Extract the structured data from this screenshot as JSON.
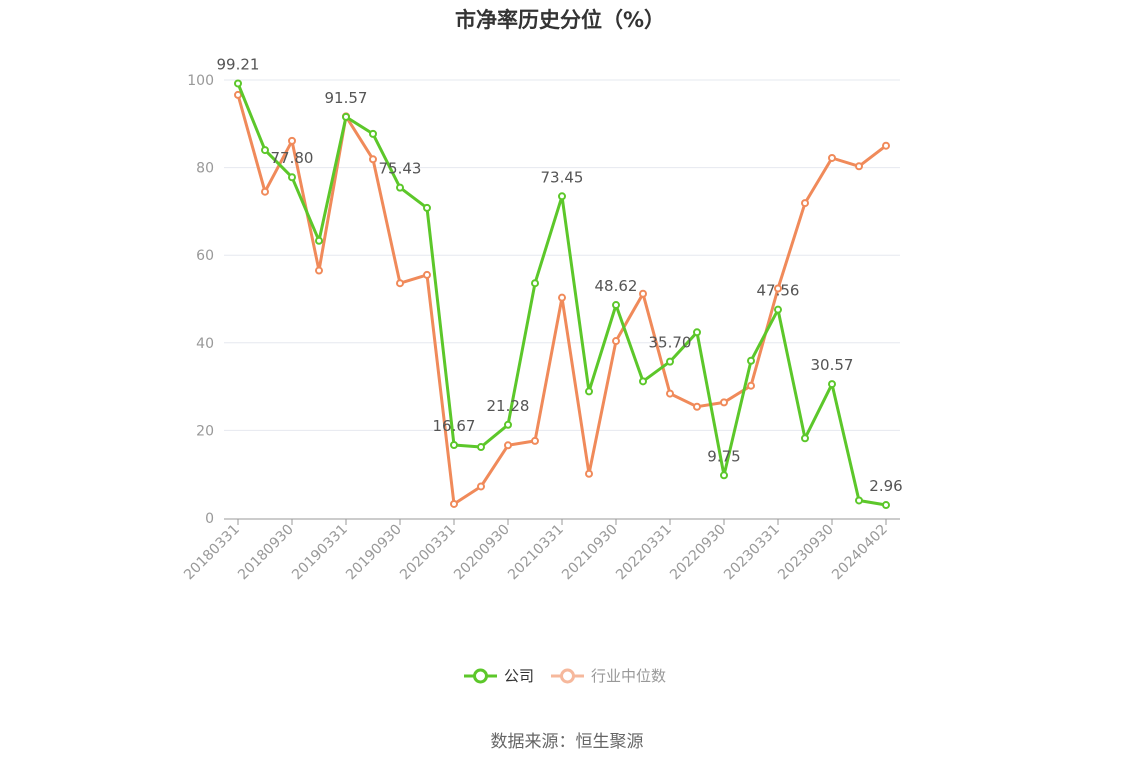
{
  "chart_data": {
    "type": "line",
    "title": "市净率历史分位（%）",
    "source": "数据来源：恒生聚源",
    "ylim": [
      0,
      100
    ],
    "y_ticks": [
      "0",
      "20",
      "40",
      "60",
      "80",
      "100"
    ],
    "x_tick_labels": [
      "20180331",
      "20180930",
      "20190331",
      "20190930",
      "20200331",
      "20200930",
      "20210331",
      "20210930",
      "20220331",
      "20220930",
      "20230331",
      "20230930",
      "20240402"
    ],
    "x": [
      "20180331",
      "20180630",
      "20180930",
      "20181231",
      "20190331",
      "20190630",
      "20190930",
      "20191231",
      "20200331",
      "20200630",
      "20200930",
      "20201231",
      "20210331",
      "20210630",
      "20210930",
      "20211231",
      "20220331",
      "20220630",
      "20220930",
      "20221231",
      "20230331",
      "20230630",
      "20230930",
      "20231231",
      "20240402"
    ],
    "grid": true,
    "legend_position": "bottom",
    "series": [
      {
        "name": "公司",
        "color": "#5cc72a",
        "values": [
          99.21,
          84.0,
          77.8,
          63.3,
          91.57,
          87.7,
          75.43,
          70.8,
          16.67,
          16.2,
          21.28,
          53.6,
          73.45,
          28.9,
          48.62,
          31.2,
          35.7,
          42.4,
          9.75,
          35.9,
          47.56,
          18.2,
          30.57,
          4.0,
          2.96
        ],
        "labels": {
          "0": "99.21",
          "2": "77.80",
          "4": "91.57",
          "6": "75.43",
          "8": "16.67",
          "10": "21.28",
          "12": "73.45",
          "14": "48.62",
          "16": "35.70",
          "18": "9.75",
          "20": "47.56",
          "22": "30.57",
          "24": "2.96"
        }
      },
      {
        "name": "行业中位数",
        "color": "#f08a5a",
        "values": [
          96.6,
          74.5,
          86.1,
          56.5,
          91.7,
          81.9,
          53.6,
          55.5,
          3.2,
          7.2,
          16.6,
          17.6,
          50.3,
          10.1,
          40.4,
          51.2,
          28.4,
          25.4,
          26.4,
          30.2,
          52.4,
          71.9,
          82.2,
          80.3,
          85.0
        ]
      }
    ]
  }
}
